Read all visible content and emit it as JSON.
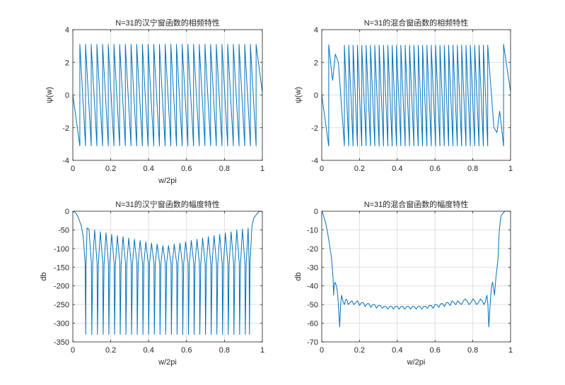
{
  "colors": {
    "line": "#0072bd",
    "grid": "#dfdfdf",
    "axis": "#262626"
  },
  "chart_data": [
    {
      "type": "line",
      "title": "N=31的汉宁窗函数的相频特性",
      "xlabel": "w/2pi",
      "ylabel": "ψ(w)",
      "xlim": [
        0,
        1
      ],
      "ylim": [
        -4,
        4
      ],
      "xticks": [
        0,
        0.2,
        0.4,
        0.6,
        0.8,
        1
      ],
      "xtick_labels": [
        "0",
        "0.2",
        "0.4",
        "0.6",
        "0.8",
        "1"
      ],
      "yticks": [
        -4,
        -2,
        0,
        2,
        4
      ],
      "ytick_labels": [
        "-4",
        "-2",
        "0",
        "2",
        "4"
      ],
      "grid": true,
      "series": [
        {
          "x": [
            0,
            0.037,
            0.037,
            0.067,
            0.067,
            0.097,
            0.097,
            0.127,
            0.127,
            0.157,
            0.157,
            0.187,
            0.187,
            0.217,
            0.217,
            0.247,
            0.247,
            0.277,
            0.277,
            0.307,
            0.307,
            0.337,
            0.337,
            0.367,
            0.367,
            0.397,
            0.397,
            0.427,
            0.427,
            0.457,
            0.457,
            0.487,
            0.487,
            0.517,
            0.517,
            0.547,
            0.547,
            0.577,
            0.577,
            0.607,
            0.607,
            0.637,
            0.637,
            0.667,
            0.667,
            0.697,
            0.697,
            0.727,
            0.727,
            0.757,
            0.757,
            0.787,
            0.787,
            0.817,
            0.817,
            0.847,
            0.847,
            0.877,
            0.877,
            0.907,
            0.907,
            0.937,
            0.937,
            0.967,
            0.967,
            1.0
          ],
          "y": [
            0,
            -3.12,
            3.1,
            -3.12,
            3.1,
            -3.12,
            3.1,
            -3.12,
            3.1,
            -3.12,
            3.1,
            -3.12,
            3.1,
            -3.12,
            3.1,
            -3.12,
            3.1,
            -3.12,
            3.1,
            -3.12,
            3.1,
            -3.12,
            3.1,
            -3.12,
            3.1,
            -3.12,
            3.1,
            -3.12,
            3.1,
            -3.12,
            3.1,
            -3.12,
            3.1,
            -3.12,
            3.1,
            -3.12,
            3.1,
            -3.12,
            3.1,
            -3.12,
            3.1,
            -3.12,
            3.1,
            -3.12,
            3.1,
            -3.12,
            3.1,
            -3.12,
            3.1,
            -3.12,
            3.1,
            -3.12,
            3.1,
            -3.12,
            3.1,
            -3.12,
            3.1,
            -3.12,
            3.1,
            -3.12,
            3.1,
            -3.12,
            3.1,
            -3.12,
            3.1,
            0.15
          ]
        }
      ]
    },
    {
      "type": "line",
      "title": "N=31的混合窗函数的相频特性",
      "xlabel": "",
      "ylabel": "ψ(w)",
      "xlim": [
        0,
        1
      ],
      "ylim": [
        -4,
        4
      ],
      "xticks": [
        0,
        0.2,
        0.4,
        0.6,
        0.8,
        1
      ],
      "xtick_labels": [
        "0",
        "0.2",
        "0.4",
        "0.6",
        "0.8",
        "1"
      ],
      "yticks": [
        -4,
        -2,
        0,
        2,
        4
      ],
      "ytick_labels": [
        "-4",
        "-2",
        "0",
        "2",
        "4"
      ],
      "grid": true,
      "series": [
        {
          "x": [
            0,
            0.037,
            0.037,
            0.055,
            0.058,
            0.072,
            0.088,
            0.12,
            0.12,
            0.143,
            0.143,
            0.166,
            0.166,
            0.189,
            0.189,
            0.212,
            0.212,
            0.235,
            0.235,
            0.258,
            0.258,
            0.281,
            0.281,
            0.304,
            0.304,
            0.327,
            0.327,
            0.35,
            0.35,
            0.373,
            0.373,
            0.396,
            0.396,
            0.419,
            0.419,
            0.442,
            0.442,
            0.465,
            0.465,
            0.488,
            0.488,
            0.511,
            0.511,
            0.534,
            0.534,
            0.557,
            0.557,
            0.58,
            0.58,
            0.603,
            0.603,
            0.626,
            0.626,
            0.649,
            0.649,
            0.672,
            0.672,
            0.695,
            0.695,
            0.718,
            0.718,
            0.741,
            0.741,
            0.764,
            0.764,
            0.787,
            0.787,
            0.81,
            0.81,
            0.833,
            0.833,
            0.856,
            0.856,
            0.879,
            0.879,
            0.912,
            0.928,
            0.942,
            0.945,
            0.963,
            0.963,
            1.0
          ],
          "y": [
            0,
            -3.12,
            3.08,
            1.1,
            0.9,
            2.5,
            2.0,
            -3.12,
            3.05,
            -3.12,
            3.05,
            -3.12,
            3.05,
            -3.12,
            3.05,
            -3.12,
            3.05,
            -3.12,
            3.05,
            -3.12,
            3.05,
            -3.12,
            3.05,
            -3.12,
            3.05,
            -3.12,
            3.05,
            -3.12,
            3.05,
            -3.12,
            3.05,
            -3.12,
            3.05,
            -3.12,
            3.05,
            -3.12,
            3.05,
            -3.12,
            3.05,
            -3.12,
            3.05,
            -3.12,
            3.05,
            -3.12,
            3.05,
            -3.12,
            3.05,
            -3.12,
            3.05,
            -3.12,
            3.05,
            -3.12,
            3.05,
            -3.12,
            3.05,
            -3.12,
            3.05,
            -3.12,
            3.05,
            -3.12,
            3.05,
            -3.12,
            3.05,
            -3.12,
            3.05,
            -3.12,
            3.05,
            -3.12,
            3.05,
            -3.12,
            3.05,
            -3.12,
            3.05,
            -3.12,
            3.05,
            -2.0,
            -2.3,
            -1.0,
            -1.2,
            -3.12,
            3.1,
            0.2
          ]
        }
      ]
    },
    {
      "type": "line",
      "title": "N=31的汉宁窗函数的幅度特性",
      "xlabel": "w/2pi",
      "ylabel": "db",
      "xlim": [
        0,
        1
      ],
      "ylim": [
        -350,
        0
      ],
      "xticks": [
        0,
        0.2,
        0.4,
        0.6,
        0.8,
        1
      ],
      "xtick_labels": [
        "0",
        "0.2",
        "0.4",
        "0.6",
        "0.8",
        "1"
      ],
      "yticks": [
        -350,
        -300,
        -250,
        -200,
        -150,
        -100,
        -50,
        0
      ],
      "ytick_labels": [
        "-350",
        "-300",
        "-250",
        "-200",
        "-150",
        "-100",
        "-50",
        "0"
      ],
      "grid": true,
      "series": [
        {
          "x": [
            0,
            0.01,
            0.02,
            0.03,
            0.045,
            0.055,
            0.065,
            0.068,
            0.07,
            0.075,
            0.085,
            0.098,
            0.1,
            0.105,
            0.115,
            0.128,
            0.13,
            0.135,
            0.145,
            0.158,
            0.16,
            0.165,
            0.175,
            0.188,
            0.19,
            0.195,
            0.205,
            0.218,
            0.22,
            0.225,
            0.235,
            0.248,
            0.25,
            0.255,
            0.265,
            0.278,
            0.28,
            0.285,
            0.295,
            0.308,
            0.31,
            0.315,
            0.325,
            0.338,
            0.34,
            0.345,
            0.355,
            0.368,
            0.37,
            0.375,
            0.385,
            0.398,
            0.4,
            0.405,
            0.415,
            0.428,
            0.43,
            0.435,
            0.445,
            0.458,
            0.46,
            0.465,
            0.475,
            0.488,
            0.49,
            0.495,
            0.505,
            0.518,
            0.52,
            0.525,
            0.535,
            0.548,
            0.55,
            0.555,
            0.565,
            0.578,
            0.58,
            0.585,
            0.595,
            0.608,
            0.61,
            0.615,
            0.625,
            0.638,
            0.64,
            0.645,
            0.655,
            0.668,
            0.67,
            0.675,
            0.685,
            0.698,
            0.7,
            0.705,
            0.715,
            0.728,
            0.73,
            0.735,
            0.745,
            0.758,
            0.76,
            0.765,
            0.775,
            0.788,
            0.79,
            0.795,
            0.805,
            0.818,
            0.82,
            0.825,
            0.835,
            0.848,
            0.85,
            0.855,
            0.865,
            0.878,
            0.88,
            0.885,
            0.895,
            0.908,
            0.91,
            0.915,
            0.925,
            0.93,
            0.932,
            0.935,
            0.945,
            0.955,
            0.97,
            0.98,
            0.99,
            1.0
          ],
          "y": [
            0,
            -2,
            -8,
            -18,
            -40,
            -70,
            -140,
            -330,
            -140,
            -45,
            -48,
            -140,
            -330,
            -140,
            -50,
            -140,
            -330,
            -140,
            -55,
            -140,
            -330,
            -140,
            -58,
            -140,
            -330,
            -140,
            -62,
            -140,
            -330,
            -140,
            -65,
            -140,
            -330,
            -140,
            -68,
            -140,
            -330,
            -140,
            -72,
            -140,
            -330,
            -140,
            -75,
            -140,
            -330,
            -140,
            -78,
            -140,
            -330,
            -140,
            -82,
            -140,
            -330,
            -140,
            -85,
            -140,
            -330,
            -140,
            -88,
            -140,
            -330,
            -140,
            -92,
            -140,
            -330,
            -140,
            -92,
            -140,
            -330,
            -140,
            -88,
            -140,
            -330,
            -140,
            -85,
            -140,
            -330,
            -140,
            -82,
            -140,
            -330,
            -140,
            -78,
            -140,
            -330,
            -140,
            -75,
            -140,
            -330,
            -140,
            -72,
            -140,
            -330,
            -140,
            -68,
            -140,
            -330,
            -140,
            -65,
            -140,
            -330,
            -140,
            -62,
            -140,
            -330,
            -140,
            -58,
            -140,
            -330,
            -140,
            -55,
            -140,
            -330,
            -140,
            -50,
            -140,
            -330,
            -140,
            -48,
            -140,
            -330,
            -140,
            -45,
            -140,
            -330,
            -140,
            -40,
            -18,
            -8,
            -2,
            0,
            0
          ]
        }
      ]
    },
    {
      "type": "line",
      "title": "N=31的混合窗函数的幅度特性",
      "xlabel": "w/2pi",
      "ylabel": "db",
      "xlim": [
        0,
        1
      ],
      "ylim": [
        -70,
        0
      ],
      "xticks": [
        0,
        0.2,
        0.4,
        0.6,
        0.8,
        1
      ],
      "xtick_labels": [
        "0",
        "0.2",
        "0.4",
        "0.6",
        "0.8",
        "1"
      ],
      "yticks": [
        -70,
        -60,
        -50,
        -40,
        -30,
        -20,
        -10,
        0
      ],
      "ytick_labels": [
        "-70",
        "-60",
        "-50",
        "-40",
        "-30",
        "-20",
        "-10",
        "0"
      ],
      "grid": true,
      "series": [
        {
          "x": [
            0,
            0.005,
            0.01,
            0.02,
            0.03,
            0.04,
            0.05,
            0.055,
            0.06,
            0.063,
            0.065,
            0.07,
            0.078,
            0.085,
            0.09,
            0.095,
            0.1,
            0.105,
            0.11,
            0.115,
            0.12,
            0.125,
            0.13,
            0.135,
            0.14,
            0.15,
            0.16,
            0.17,
            0.18,
            0.19,
            0.2,
            0.21,
            0.22,
            0.23,
            0.24,
            0.25,
            0.26,
            0.27,
            0.28,
            0.29,
            0.3,
            0.31,
            0.32,
            0.33,
            0.34,
            0.35,
            0.36,
            0.37,
            0.38,
            0.39,
            0.4,
            0.41,
            0.42,
            0.43,
            0.44,
            0.45,
            0.46,
            0.47,
            0.48,
            0.49,
            0.5,
            0.51,
            0.52,
            0.53,
            0.54,
            0.55,
            0.56,
            0.57,
            0.58,
            0.59,
            0.6,
            0.61,
            0.62,
            0.63,
            0.64,
            0.65,
            0.66,
            0.67,
            0.68,
            0.69,
            0.7,
            0.71,
            0.72,
            0.73,
            0.74,
            0.75,
            0.76,
            0.77,
            0.78,
            0.79,
            0.8,
            0.81,
            0.82,
            0.83,
            0.84,
            0.85,
            0.86,
            0.865,
            0.87,
            0.875,
            0.88,
            0.885,
            0.89,
            0.895,
            0.9,
            0.905,
            0.91,
            0.915,
            0.922,
            0.93,
            0.935,
            0.937,
            0.94,
            0.945,
            0.95,
            0.96,
            0.97,
            0.98,
            0.99,
            0.995,
            1.0
          ],
          "y": [
            0,
            -1,
            -2.5,
            -6,
            -11,
            -17,
            -24,
            -29,
            -36,
            -45,
            -41,
            -38,
            -40,
            -45,
            -53,
            -62,
            -50,
            -45,
            -47,
            -49,
            -50,
            -48,
            -47,
            -48,
            -50,
            -49,
            -48,
            -50,
            -49,
            -48,
            -50.5,
            -49,
            -49,
            -51,
            -49.5,
            -49.5,
            -51.5,
            -50,
            -50,
            -52,
            -50.5,
            -50.5,
            -52,
            -51,
            -51,
            -52.5,
            -51,
            -51,
            -52.5,
            -51,
            -51,
            -52.5,
            -51,
            -51,
            -52.5,
            -51,
            -51,
            -52.5,
            -51,
            -51,
            -52.5,
            -51,
            -51,
            -52.5,
            -51,
            -51,
            -52,
            -50.5,
            -50.5,
            -52,
            -50,
            -50,
            -51.5,
            -49.5,
            -49.5,
            -51,
            -49,
            -49,
            -50.5,
            -48,
            -49,
            -50,
            -48,
            -49,
            -50,
            -48,
            -47,
            -48,
            -50,
            -49,
            -47,
            -48,
            -50,
            -49,
            -47,
            -48,
            -50,
            -49,
            -47,
            -45,
            -50,
            -62,
            -53,
            -45,
            -40,
            -38,
            -41,
            -45,
            -36,
            -29,
            -24,
            -17,
            -11,
            -6,
            -2.5,
            -1,
            0,
            0,
            0,
            0,
            0
          ]
        }
      ]
    }
  ]
}
